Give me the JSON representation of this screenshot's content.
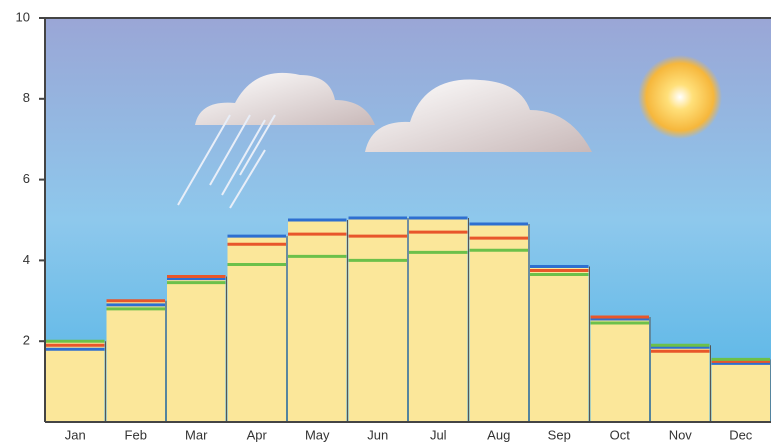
{
  "chart_data": {
    "type": "bar",
    "categories": [
      "Jan",
      "Feb",
      "Mar",
      "Apr",
      "May",
      "Jun",
      "Jul",
      "Aug",
      "Sep",
      "Oct",
      "Nov",
      "Dec"
    ],
    "series": [
      {
        "color": "#2e6fd0",
        "values": [
          1.8,
          2.9,
          3.55,
          4.6,
          5.0,
          5.05,
          5.05,
          4.9,
          3.85,
          2.55,
          1.85,
          1.45
        ]
      },
      {
        "color": "#e8562a",
        "values": [
          1.9,
          3.0,
          3.6,
          4.4,
          4.65,
          4.6,
          4.7,
          4.55,
          3.75,
          2.6,
          1.75,
          1.5
        ]
      },
      {
        "color": "#6cc04a",
        "values": [
          2.0,
          2.8,
          3.45,
          3.9,
          4.1,
          4.0,
          4.2,
          4.25,
          3.65,
          2.45,
          1.9,
          1.55
        ]
      }
    ],
    "bar_color": "#fbe79a",
    "ylim": [
      0,
      10
    ],
    "yticks": [
      2,
      4,
      6,
      8,
      10
    ]
  }
}
